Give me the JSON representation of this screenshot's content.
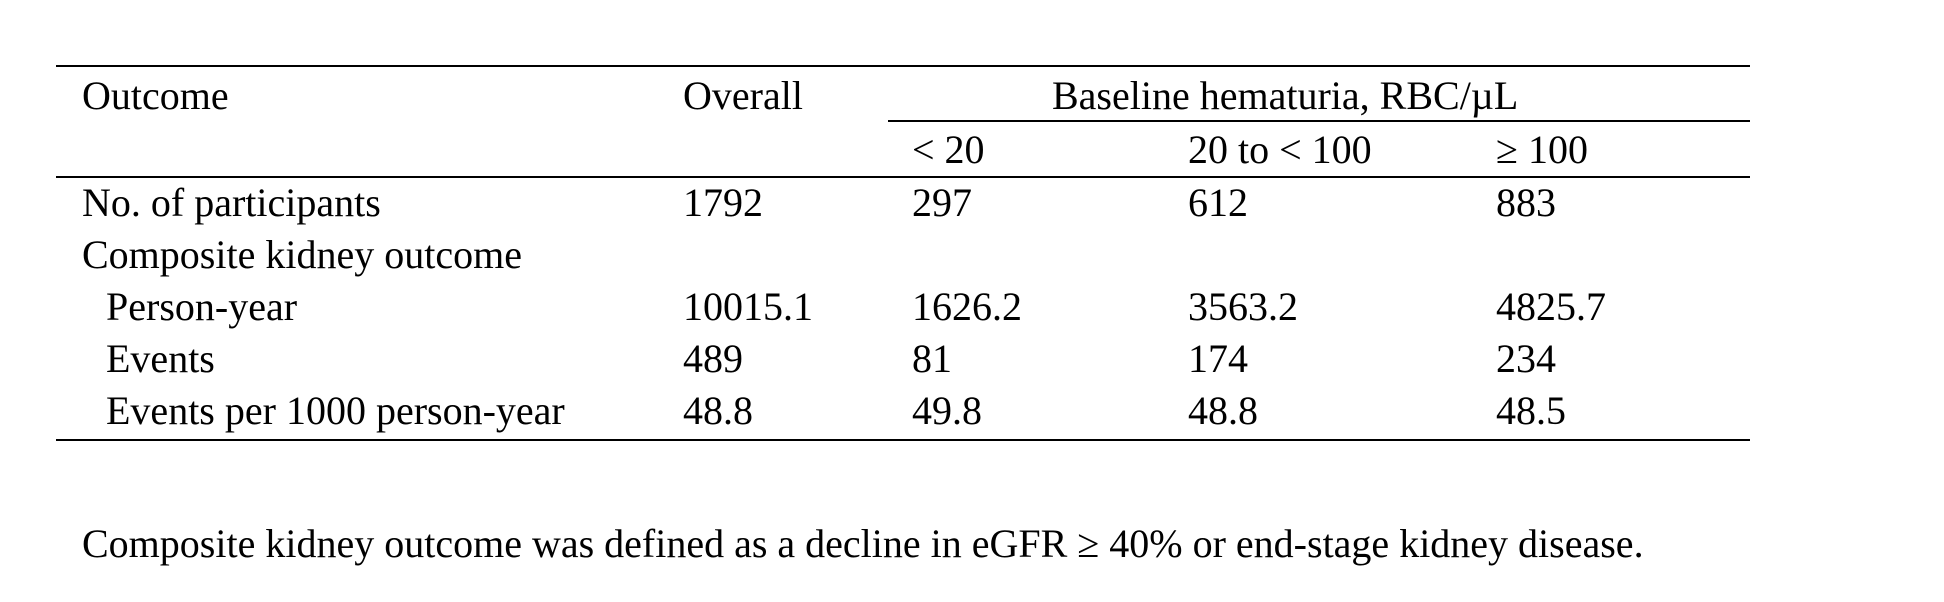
{
  "table": {
    "header": {
      "outcome": "Outcome",
      "overall": "Overall",
      "group_label": "Baseline hematuria, RBC/µL",
      "sub_cols": [
        "< 20",
        "20 to < 100",
        "≥ 100"
      ]
    },
    "rows": [
      {
        "label": "No. of participants",
        "overall": "1792",
        "lt20": "297",
        "mid": "612",
        "ge100": "883"
      },
      {
        "label": "Composite kidney outcome",
        "overall": "",
        "lt20": "",
        "mid": "",
        "ge100": ""
      },
      {
        "label": "Person-year",
        "overall": "10015.1",
        "lt20": "1626.2",
        "mid": "3563.2",
        "ge100": "4825.7"
      },
      {
        "label": "Events",
        "overall": "489",
        "lt20": "81",
        "mid": "174",
        "ge100": "234"
      },
      {
        "label": "Events per 1000 person-year",
        "overall": "48.8",
        "lt20": "49.8",
        "mid": "48.8",
        "ge100": "48.5"
      }
    ]
  },
  "footnote": "Composite kidney outcome was defined as a decline in eGFR ≥ 40% or end-stage kidney disease."
}
